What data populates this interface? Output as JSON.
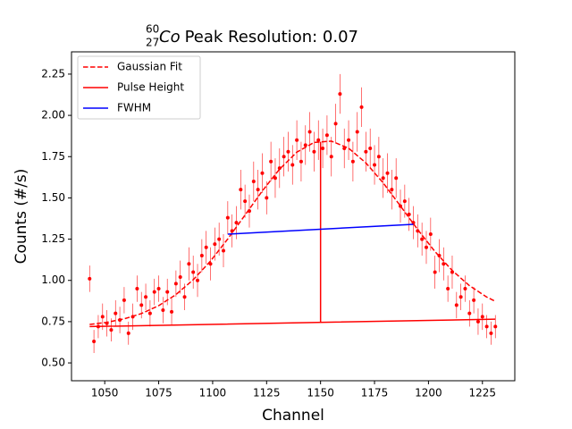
{
  "chart_data": {
    "type": "scatter",
    "title_mass_number": "60",
    "title_atomic_number": "27",
    "title_element": "Co",
    "title_text": "Peak Resolution: 0.07",
    "xlabel": "Channel",
    "ylabel": "Counts (#/s)",
    "xlim": [
      1034.6,
      1240.0
    ],
    "ylim": [
      0.392,
      2.385
    ],
    "xticks": [
      1050,
      1075,
      1100,
      1125,
      1150,
      1175,
      1200,
      1225
    ],
    "yticks": [
      {
        "value": 0.5,
        "label": "0.50"
      },
      {
        "value": 0.75,
        "label": "0.75"
      },
      {
        "value": 1.0,
        "label": "1.00"
      },
      {
        "value": 1.25,
        "label": "1.25"
      },
      {
        "value": 1.5,
        "label": "1.50"
      },
      {
        "value": 1.75,
        "label": "1.75"
      },
      {
        "value": 2.0,
        "label": "2.00"
      },
      {
        "value": 2.25,
        "label": "2.25"
      }
    ],
    "legend": "upper left",
    "points": {
      "color": "#ff0000",
      "x": [
        1043,
        1045,
        1047,
        1049,
        1051,
        1053,
        1055,
        1057,
        1059,
        1061,
        1063,
        1065,
        1067,
        1069,
        1071,
        1073,
        1075,
        1077,
        1079,
        1081,
        1083,
        1085,
        1087,
        1089,
        1091,
        1093,
        1095,
        1097,
        1099,
        1101,
        1103,
        1105,
        1107,
        1109,
        1111,
        1113,
        1115,
        1117,
        1119,
        1121,
        1123,
        1125,
        1127,
        1129,
        1131,
        1133,
        1135,
        1137,
        1139,
        1141,
        1143,
        1145,
        1147,
        1149,
        1151,
        1153,
        1155,
        1157,
        1159,
        1161,
        1163,
        1165,
        1167,
        1169,
        1171,
        1173,
        1175,
        1177,
        1179,
        1181,
        1183,
        1185,
        1187,
        1189,
        1191,
        1193,
        1195,
        1197,
        1199,
        1201,
        1203,
        1205,
        1207,
        1209,
        1211,
        1213,
        1215,
        1217,
        1219,
        1221,
        1223,
        1225,
        1227,
        1229,
        1231
      ],
      "values": [
        1.01,
        0.63,
        0.72,
        0.78,
        0.74,
        0.7,
        0.8,
        0.76,
        0.88,
        0.68,
        0.78,
        0.95,
        0.85,
        0.9,
        0.8,
        0.93,
        0.95,
        0.82,
        0.93,
        0.81,
        0.98,
        1.02,
        0.9,
        1.1,
        1.05,
        1.0,
        1.15,
        1.2,
        1.1,
        1.22,
        1.25,
        1.18,
        1.38,
        1.3,
        1.35,
        1.55,
        1.48,
        1.42,
        1.6,
        1.55,
        1.65,
        1.5,
        1.72,
        1.62,
        1.68,
        1.75,
        1.78,
        1.7,
        1.85,
        1.72,
        1.82,
        1.9,
        1.78,
        1.85,
        1.8,
        1.88,
        1.75,
        1.95,
        2.13,
        1.8,
        1.85,
        1.72,
        1.9,
        2.05,
        1.78,
        1.8,
        1.7,
        1.75,
        1.62,
        1.65,
        1.55,
        1.62,
        1.45,
        1.48,
        1.4,
        1.35,
        1.3,
        1.25,
        1.2,
        1.28,
        1.05,
        1.15,
        1.1,
        0.95,
        1.05,
        0.85,
        0.9,
        0.95,
        0.8,
        0.88,
        0.75,
        0.78,
        0.72,
        0.68,
        0.72
      ],
      "errors": [
        0.08,
        0.07,
        0.07,
        0.08,
        0.08,
        0.07,
        0.08,
        0.08,
        0.08,
        0.07,
        0.08,
        0.08,
        0.08,
        0.08,
        0.08,
        0.08,
        0.08,
        0.08,
        0.08,
        0.08,
        0.08,
        0.1,
        0.08,
        0.1,
        0.1,
        0.1,
        0.1,
        0.1,
        0.1,
        0.1,
        0.1,
        0.1,
        0.1,
        0.1,
        0.1,
        0.12,
        0.1,
        0.1,
        0.12,
        0.12,
        0.12,
        0.1,
        0.12,
        0.12,
        0.12,
        0.12,
        0.12,
        0.12,
        0.12,
        0.12,
        0.12,
        0.12,
        0.12,
        0.12,
        0.12,
        0.12,
        0.12,
        0.12,
        0.12,
        0.12,
        0.12,
        0.12,
        0.12,
        0.12,
        0.12,
        0.12,
        0.12,
        0.12,
        0.12,
        0.12,
        0.12,
        0.12,
        0.1,
        0.1,
        0.1,
        0.1,
        0.1,
        0.1,
        0.1,
        0.1,
        0.1,
        0.1,
        0.1,
        0.08,
        0.1,
        0.08,
        0.08,
        0.08,
        0.08,
        0.08,
        0.08,
        0.08,
        0.07,
        0.07,
        0.07
      ]
    },
    "series": [
      {
        "name": "Gaussian Fit",
        "color": "#ff0000",
        "style": "dashed",
        "x": [
          1043,
          1051,
          1059,
          1067,
          1075,
          1083,
          1091,
          1099,
          1107,
          1115,
          1123,
          1131,
          1139,
          1147,
          1155,
          1163,
          1171,
          1179,
          1187,
          1195,
          1203,
          1211,
          1219,
          1227,
          1231
        ],
        "values": [
          0.733,
          0.746,
          0.767,
          0.799,
          0.847,
          0.914,
          1.004,
          1.117,
          1.251,
          1.396,
          1.542,
          1.674,
          1.777,
          1.836,
          1.844,
          1.801,
          1.712,
          1.591,
          1.451,
          1.308,
          1.175,
          1.06,
          0.968,
          0.899,
          0.873
        ]
      },
      {
        "name": "Pulse Height",
        "color": "#ff0000",
        "style": "solid",
        "x": [
          1043,
          1231,
          1150,
          1150,
          1150
        ],
        "values": [
          0.72,
          0.765,
          null,
          0.745,
          1.84
        ]
      },
      {
        "name": "FWHM",
        "color": "#0000ff",
        "style": "solid",
        "x": [
          1107,
          1193
        ],
        "values": [
          1.28,
          1.34
        ]
      }
    ]
  }
}
